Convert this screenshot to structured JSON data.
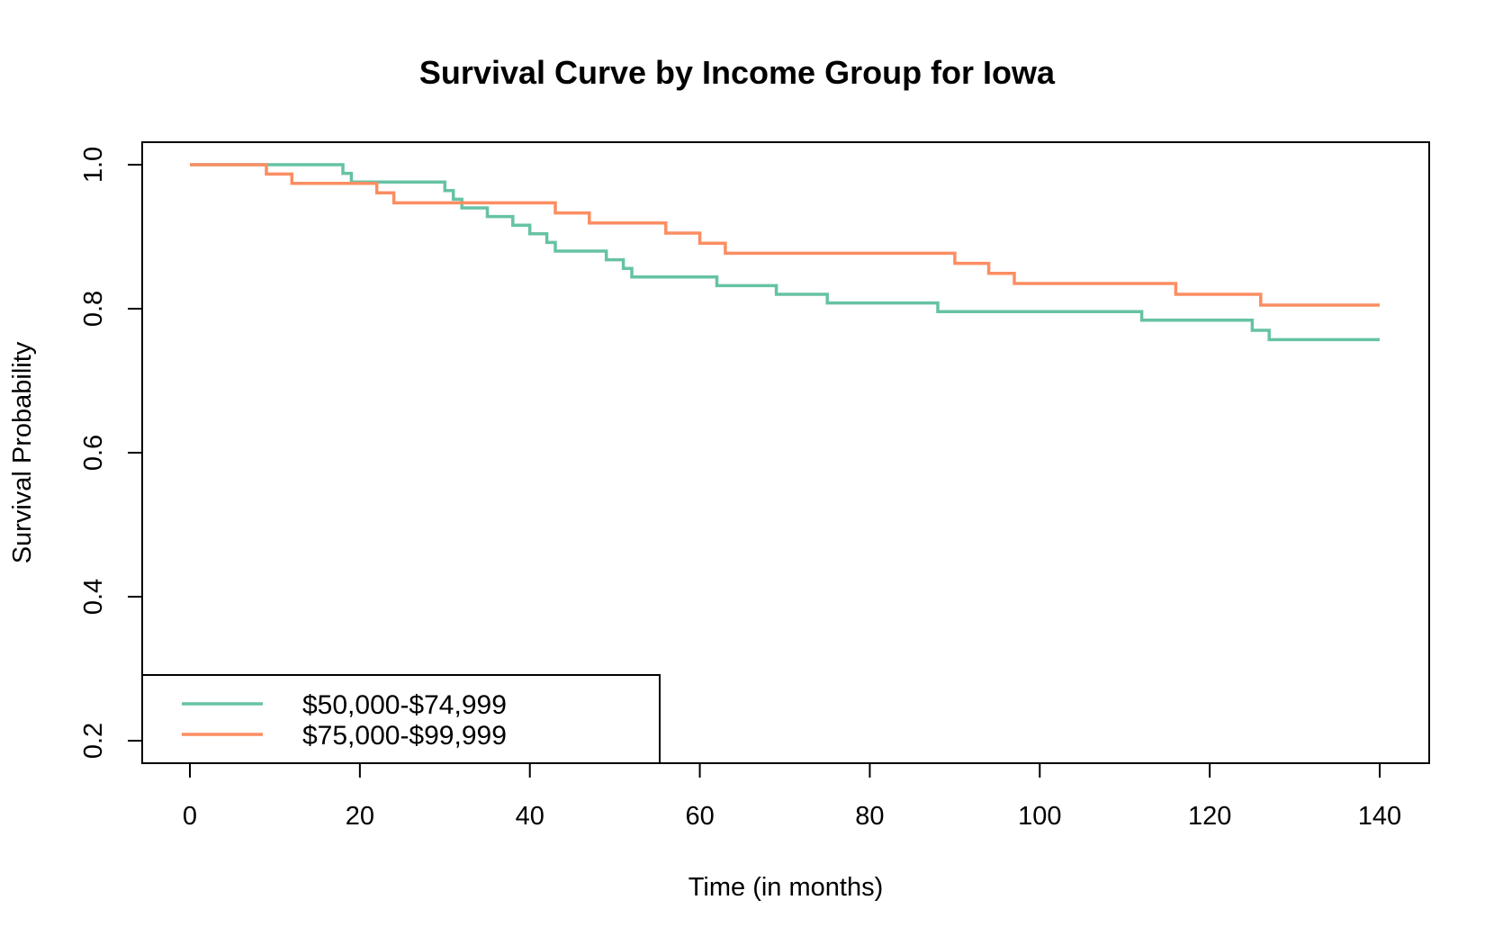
{
  "chart_data": {
    "type": "line",
    "step": true,
    "title": "Survival Curve by Income Group for Iowa",
    "xlabel": "Time (in months)",
    "ylabel": "Survival Probability",
    "xlim": [
      0,
      140
    ],
    "ylim": [
      0.2,
      1.0
    ],
    "xticks": [
      0,
      20,
      40,
      60,
      80,
      100,
      120,
      140
    ],
    "yticks": [
      0.2,
      0.4,
      0.6,
      0.8,
      1.0
    ],
    "xtick_labels": [
      "0",
      "20",
      "40",
      "60",
      "80",
      "100",
      "120",
      "140"
    ],
    "ytick_labels": [
      "0.2",
      "0.4",
      "0.6",
      "0.8",
      "1.0"
    ],
    "grid": false,
    "legend_position": "bottom-left",
    "series": [
      {
        "name": "$50,000-$74,999",
        "color": "#66c2a5",
        "x": [
          0,
          18,
          19,
          30,
          31,
          32,
          35,
          38,
          40,
          42,
          43,
          49,
          51,
          52,
          62,
          69,
          75,
          88,
          112,
          125,
          127,
          140
        ],
        "y": [
          1.0,
          0.988,
          0.976,
          0.964,
          0.952,
          0.94,
          0.928,
          0.916,
          0.904,
          0.892,
          0.88,
          0.868,
          0.856,
          0.844,
          0.832,
          0.82,
          0.808,
          0.796,
          0.784,
          0.77,
          0.757,
          0.757
        ]
      },
      {
        "name": "$75,000-$99,999",
        "color": "#fc8d62",
        "x": [
          0,
          9,
          12,
          22,
          24,
          43,
          47,
          56,
          60,
          63,
          90,
          94,
          97,
          116,
          126,
          140
        ],
        "y": [
          1.0,
          0.987,
          0.974,
          0.961,
          0.947,
          0.933,
          0.919,
          0.905,
          0.891,
          0.877,
          0.863,
          0.849,
          0.835,
          0.82,
          0.805,
          0.805
        ]
      }
    ]
  }
}
